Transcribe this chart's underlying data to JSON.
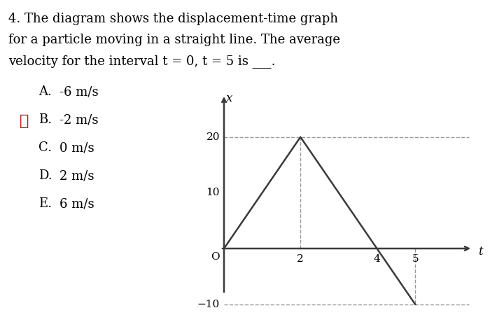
{
  "title_line1": "4. The diagram shows the displacement-time graph",
  "title_line2": "for a particle moving in a straight line. The average",
  "title_line3": "velocity for the interval t = 0, t = 5 is ___.",
  "choices": [
    [
      "A.",
      "-6 m/s",
      false
    ],
    [
      "B.",
      "-2 m/s",
      true
    ],
    [
      "C.",
      "0 m/s",
      false
    ],
    [
      "D.",
      "2 m/s",
      false
    ],
    [
      "E.",
      "6 m/s",
      false
    ]
  ],
  "graph_points_t": [
    0,
    2,
    4,
    5
  ],
  "graph_points_x": [
    0,
    20,
    0,
    -10
  ],
  "xlim": [
    -0.4,
    6.5
  ],
  "ylim": [
    -14.5,
    27
  ],
  "x_ticks": [
    2,
    4,
    5
  ],
  "y_ticks_positive": [
    10,
    20
  ],
  "y_tick_negative": -10,
  "x_label": "t",
  "y_label": "x",
  "line_color": "#3a3a3a",
  "dashed_color": "#999999",
  "background_color": "#ffffff",
  "checkmark_color": "#cc0000",
  "font_size_title": 13,
  "font_size_choices": 13,
  "font_size_axis": 11
}
